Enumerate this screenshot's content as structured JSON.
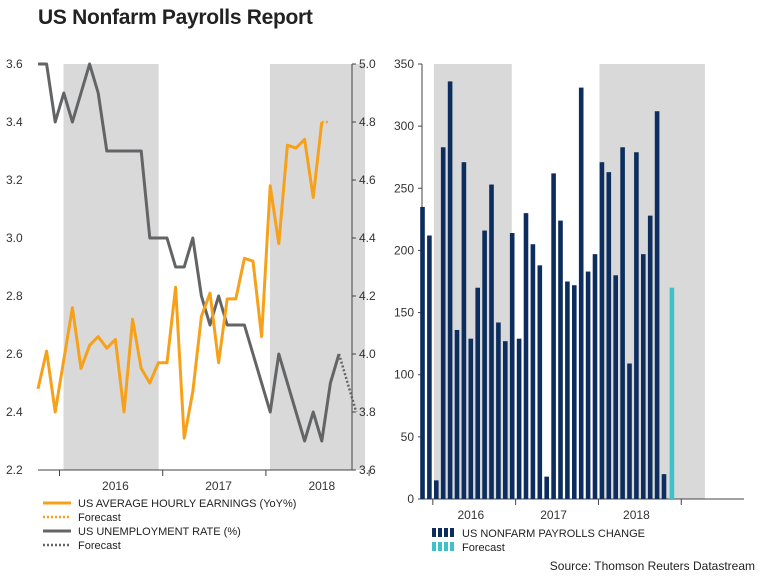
{
  "title": "US Nonfarm Payrolls Report",
  "source": "Source: Thomson Reuters Datastream",
  "colors": {
    "earnings": "#F7A11A",
    "unemployment": "#636466",
    "payrolls": "#0C2D5E",
    "payrolls_forecast": "#3FC1CB",
    "shade": "#D9D9D9"
  },
  "chart_data": [
    {
      "type": "line",
      "title": "",
      "x_labels": [
        "2016",
        "2017",
        "2018"
      ],
      "months_start": "2015-10",
      "shaded_years": [
        "2016",
        "2018"
      ],
      "left_axis": {
        "label": "US AVERAGE HOURLY EARNINGS (YoY%)",
        "ylim": [
          2.2,
          3.6
        ],
        "ticks": [
          "2.2",
          "2.4",
          "2.6",
          "2.8",
          "3.0",
          "3.2",
          "3.4",
          "3.6"
        ]
      },
      "right_axis": {
        "label": "US UNEMPLOYMENT RATE (%)",
        "ylim": [
          3.6,
          5.0
        ],
        "ticks": [
          "3.6",
          "3.8",
          "4.0",
          "4.2",
          "4.4",
          "4.6",
          "4.8",
          "5.0"
        ]
      },
      "series": [
        {
          "name": "US AVERAGE HOURLY EARNINGS (YoY%)",
          "axis": "left",
          "values": [
            2.48,
            2.61,
            2.4,
            2.58,
            2.76,
            2.55,
            2.63,
            2.66,
            2.62,
            2.65,
            2.4,
            2.72,
            2.55,
            2.5,
            2.57,
            2.57,
            2.83,
            2.31,
            2.47,
            2.73,
            2.81,
            2.57,
            2.79,
            2.79,
            2.93,
            2.92,
            2.66,
            3.18,
            2.98,
            3.32,
            3.31,
            3.34,
            3.14,
            3.4
          ],
          "forecast": [
            3.4,
            3.4
          ]
        },
        {
          "name": "US UNEMPLOYMENT RATE (%)",
          "axis": "right",
          "values": [
            5.0,
            5.0,
            4.8,
            4.9,
            4.8,
            4.9,
            5.0,
            4.9,
            4.7,
            4.7,
            4.7,
            4.7,
            4.7,
            4.4,
            4.4,
            4.4,
            4.3,
            4.3,
            4.4,
            4.2,
            4.1,
            4.2,
            4.1,
            4.1,
            4.1,
            4.0,
            3.9,
            3.8,
            4.0,
            3.9,
            3.8,
            3.7,
            3.8,
            3.7,
            3.9,
            4.0
          ],
          "forecast": [
            3.8,
            3.8
          ]
        }
      ],
      "legend": [
        {
          "label": "US AVERAGE HOURLY EARNINGS (YoY%)",
          "style": "solid",
          "color": "earnings"
        },
        {
          "label": "Forecast",
          "style": "dotted",
          "color": "earnings"
        },
        {
          "label": "US UNEMPLOYMENT RATE (%)",
          "style": "solid",
          "color": "unemployment"
        },
        {
          "label": "Forecast",
          "style": "dotted",
          "color": "unemployment"
        }
      ]
    },
    {
      "type": "bar",
      "title": "",
      "x_labels": [
        "2016",
        "2017",
        "2018"
      ],
      "shaded_years": [
        "2016",
        "2018"
      ],
      "ylim": [
        0,
        350
      ],
      "ticks": [
        "0",
        "50",
        "100",
        "150",
        "200",
        "250",
        "300",
        "350"
      ],
      "series": [
        {
          "name": "US NONFARM PAYROLLS CHANGE",
          "values": [
            235,
            212,
            15,
            283,
            336,
            136,
            271,
            129,
            170,
            216,
            253,
            142,
            127,
            214,
            129,
            230,
            205,
            188,
            18,
            262,
            224,
            175,
            172,
            331,
            183,
            197,
            271,
            263,
            180,
            283,
            109,
            279,
            197,
            228,
            312,
            20
          ]
        },
        {
          "name": "Forecast",
          "values": [
            170
          ]
        }
      ],
      "legend": [
        {
          "label": "US NONFARM PAYROLLS CHANGE",
          "style": "dashed-bar",
          "color": "payrolls"
        },
        {
          "label": "Forecast",
          "style": "dashed-bar",
          "color": "payrolls_forecast"
        }
      ]
    }
  ]
}
